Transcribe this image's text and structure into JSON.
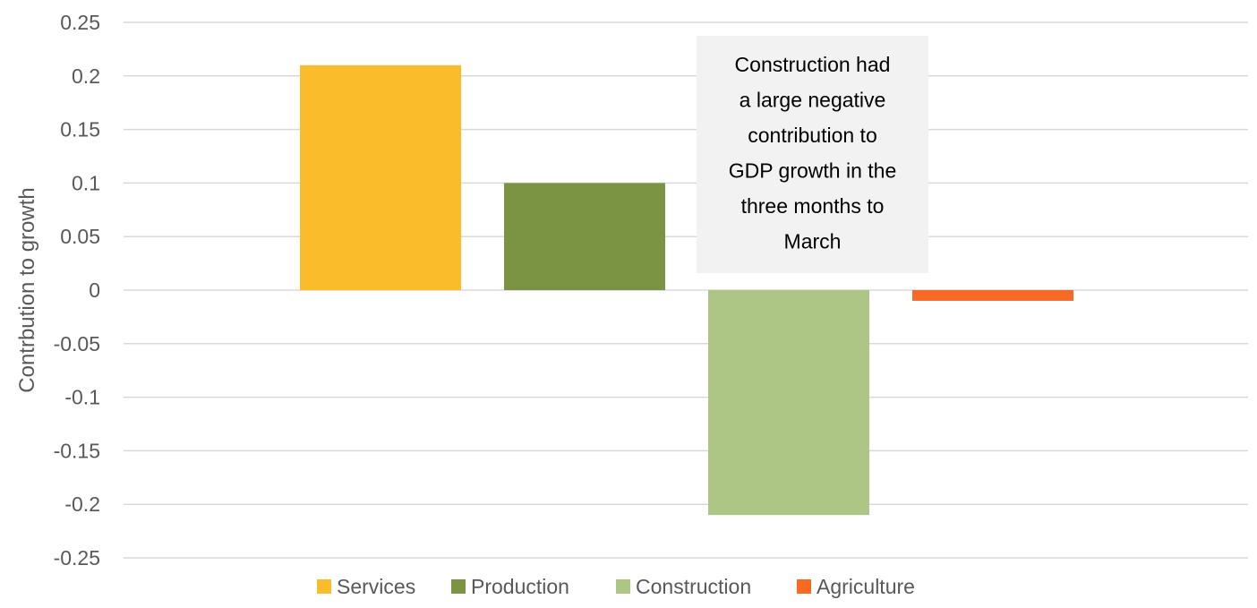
{
  "chart_data": {
    "type": "bar",
    "title": "",
    "xlabel": "",
    "ylabel": "Contrbution to growth",
    "ylim": [
      -0.25,
      0.25
    ],
    "yticks": [
      0.25,
      0.2,
      0.15,
      0.1,
      0.05,
      0,
      -0.05,
      -0.1,
      -0.15,
      -0.2,
      -0.25
    ],
    "ytick_labels": [
      "0.25",
      "0.2",
      "0.15",
      "0.1",
      "0.05",
      "0",
      "-0.05",
      "-0.1",
      "-0.15",
      "-0.2",
      "-0.25"
    ],
    "grid": true,
    "legend_position": "bottom",
    "series": [
      {
        "name": "Services",
        "value": 0.21,
        "color": "#FBBC2C"
      },
      {
        "name": "Production",
        "value": 0.1,
        "color": "#7A9443"
      },
      {
        "name": "Construction",
        "value": -0.21,
        "color": "#ADC585"
      },
      {
        "name": "Agriculture",
        "value": -0.01,
        "color": "#F86A24"
      }
    ],
    "annotation": {
      "text_lines": [
        "Construction had",
        "a large negative",
        "contribution to",
        "GDP growth in the",
        "three months to",
        "March"
      ],
      "background": "#F2F2F2"
    }
  }
}
